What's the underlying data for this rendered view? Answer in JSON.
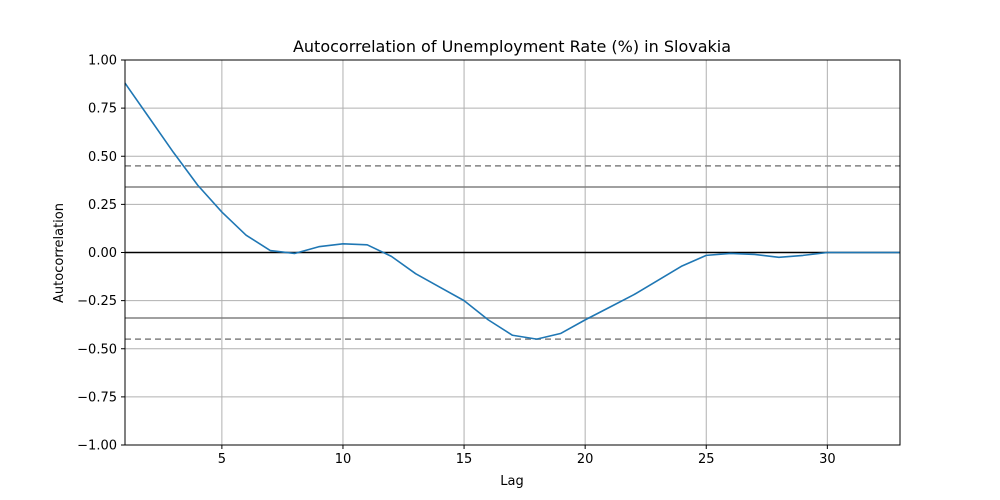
{
  "chart_data": {
    "type": "line",
    "title": "Autocorrelation of Unemployment Rate (%) in Slovakia",
    "xlabel": "Lag",
    "ylabel": "Autocorrelation",
    "xlim": [
      1,
      33
    ],
    "ylim": [
      -1.0,
      1.0
    ],
    "grid": true,
    "x_ticks": [
      5,
      10,
      15,
      20,
      25,
      30
    ],
    "x_tick_labels": [
      "5",
      "10",
      "15",
      "20",
      "25",
      "30"
    ],
    "y_ticks": [
      -1.0,
      -0.75,
      -0.5,
      -0.25,
      0.0,
      0.25,
      0.5,
      0.75,
      1.0
    ],
    "y_tick_labels": [
      "−1.00",
      "−0.75",
      "−0.50",
      "−0.25",
      "0.00",
      "0.25",
      "0.50",
      "0.75",
      "1.00"
    ],
    "reference_lines": [
      {
        "y": 0.0,
        "style": "solid",
        "color": "#000000"
      },
      {
        "y": 0.34,
        "style": "solid",
        "color": "#808080"
      },
      {
        "y": -0.34,
        "style": "solid",
        "color": "#808080"
      },
      {
        "y": 0.45,
        "style": "dashed",
        "color": "#808080"
      },
      {
        "y": -0.45,
        "style": "dashed",
        "color": "#808080"
      }
    ],
    "series": [
      {
        "color": "#1f77b4",
        "x": [
          1,
          2,
          3,
          4,
          5,
          6,
          7,
          8,
          9,
          10,
          11,
          12,
          13,
          14,
          15,
          16,
          17,
          18,
          19,
          20,
          21,
          22,
          23,
          24,
          25,
          26,
          27,
          28,
          29,
          30,
          31,
          32,
          33
        ],
        "values": [
          0.88,
          0.7,
          0.52,
          0.35,
          0.21,
          0.09,
          0.01,
          -0.005,
          0.03,
          0.045,
          0.04,
          -0.02,
          -0.11,
          -0.18,
          -0.25,
          -0.35,
          -0.43,
          -0.45,
          -0.42,
          -0.35,
          -0.285,
          -0.22,
          -0.145,
          -0.07,
          -0.015,
          -0.005,
          -0.01,
          -0.025,
          -0.015,
          0.0,
          0.0,
          0.0,
          0.0
        ]
      }
    ]
  }
}
